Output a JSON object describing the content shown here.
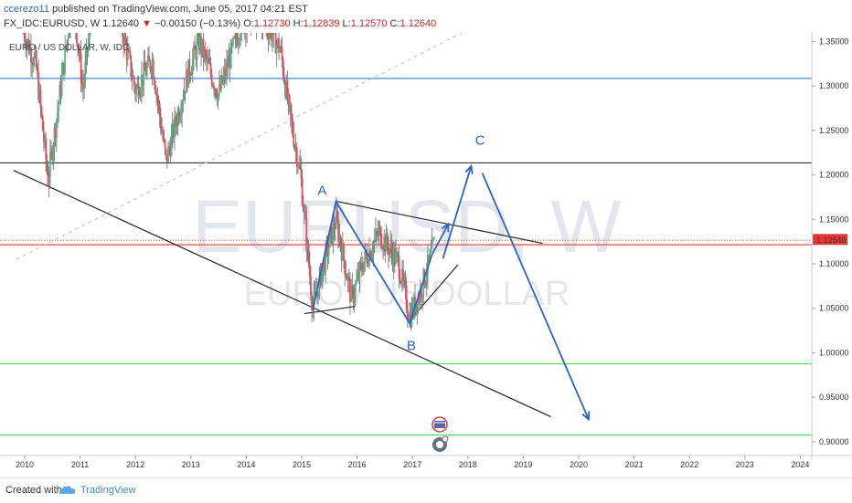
{
  "header": {
    "author": "ccerezo11",
    "published": "published on TradingView.com, June 05, 2017 04:21 EST",
    "symbol": "FX_IDC:EURUSD, W",
    "last": "1.12640",
    "change_arrow": "▼",
    "change": "−0.00150 (−0.13%)",
    "o_label": "O:",
    "o_value": "1.12730",
    "h_label": "H:",
    "h_value": "1.12839",
    "l_label": "L:",
    "l_value": "1.12570",
    "c_label": "C:",
    "c_value": "1.12640"
  },
  "chart_data": {
    "type": "candlestick",
    "legend": "EURO / US DOLLAR, W, IDC",
    "watermark_symbol": "EURUSD, W",
    "watermark_name": "EURO / US DOLLAR",
    "x_ticks": [
      "2010",
      "2011",
      "2012",
      "2013",
      "2014",
      "2015",
      "2016",
      "2017",
      "2018",
      "2019",
      "2020",
      "2021",
      "2022",
      "2023",
      "2024"
    ],
    "y_ticks": [
      "1.35000",
      "1.30000",
      "1.25000",
      "1.20000",
      "1.15000",
      "1.10000",
      "1.05000",
      "1.00000",
      "0.95000",
      "0.90000",
      "0.85000"
    ],
    "xlim": [
      2009.85,
      2024.15
    ],
    "ylim": [
      0.825,
      1.362
    ],
    "price_label": "1.12640",
    "price_line": 1.1264,
    "horizontal_lines": [
      {
        "y": 1.3085,
        "color": "#3a78c8"
      },
      {
        "y": 1.2135,
        "color": "#333333"
      },
      {
        "y": 1.1215,
        "color": "#e53935"
      },
      {
        "y": 0.9875,
        "color": "#4cd964"
      },
      {
        "y": 0.9075,
        "color": "#4cd964"
      }
    ],
    "trendlines": [
      {
        "x1": 2009.8,
        "y1": 1.205,
        "x2": 2019.5,
        "y2": 0.928,
        "color": "#222222"
      },
      {
        "x1": 2015.65,
        "y1": 1.17,
        "x2": 2019.35,
        "y2": 1.123,
        "color": "#222222"
      },
      {
        "x1": 2015.05,
        "y1": 1.044,
        "x2": 2015.95,
        "y2": 1.052,
        "color": "#222222"
      },
      {
        "x1": 2016.92,
        "y1": 1.034,
        "x2": 2017.82,
        "y2": 1.099,
        "color": "#222222"
      },
      {
        "x1": 2009.85,
        "y1": 1.105,
        "x2": 2017.9,
        "y2": 1.36,
        "color": "#c8c8c8",
        "dashed": true
      }
    ],
    "wave_path": [
      {
        "x": 2015.2,
        "y": 1.048
      },
      {
        "x": 2015.62,
        "y": 1.17
      },
      {
        "x": 2016.95,
        "y": 1.033
      },
      {
        "x": 2017.35,
        "y": 1.11
      },
      {
        "x": 2017.65,
        "y": 1.145
      }
    ],
    "projection": [
      {
        "x": 2017.55,
        "y": 1.106,
        "x2": 2018.06,
        "y2": 1.21
      },
      {
        "x": 2018.26,
        "y": 1.202,
        "x2": 2020.18,
        "y2": 0.925
      }
    ],
    "wave_labels": [
      {
        "text": "A",
        "x": 2015.37,
        "y": 1.1775
      },
      {
        "text": "B",
        "x": 2016.98,
        "y": 1.003
      },
      {
        "text": "C",
        "x": 2018.22,
        "y": 1.234
      }
    ],
    "candles": {
      "start": 2009.98,
      "step": 0.0192,
      "anchors": [
        [
          2009.98,
          1.36
        ],
        [
          2010.2,
          1.325
        ],
        [
          2010.42,
          1.195
        ],
        [
          2010.6,
          1.275
        ],
        [
          2010.87,
          1.4
        ],
        [
          2011.05,
          1.295
        ],
        [
          2011.33,
          1.45
        ],
        [
          2011.7,
          1.38
        ],
        [
          2012.0,
          1.295
        ],
        [
          2012.3,
          1.33
        ],
        [
          2012.55,
          1.215
        ],
        [
          2012.95,
          1.315
        ],
        [
          2013.15,
          1.35
        ],
        [
          2013.5,
          1.29
        ],
        [
          2013.9,
          1.37
        ],
        [
          2014.2,
          1.38
        ],
        [
          2014.45,
          1.36
        ],
        [
          2014.62,
          1.34
        ],
        [
          2014.75,
          1.28
        ],
        [
          2014.98,
          1.2
        ],
        [
          2015.2,
          1.05
        ],
        [
          2015.4,
          1.1
        ],
        [
          2015.62,
          1.15
        ],
        [
          2015.9,
          1.06
        ],
        [
          2016.1,
          1.1
        ],
        [
          2016.4,
          1.135
        ],
        [
          2016.75,
          1.1
        ],
        [
          2016.95,
          1.04
        ],
        [
          2017.15,
          1.07
        ],
        [
          2017.33,
          1.108
        ],
        [
          2017.41,
          1.1264
        ]
      ]
    }
  },
  "icons": [
    {
      "name": "flag-calendar-icon"
    },
    {
      "name": "earnings-event-icon"
    }
  ],
  "footer": {
    "created_with": "Created with",
    "brand": "TradingView"
  }
}
